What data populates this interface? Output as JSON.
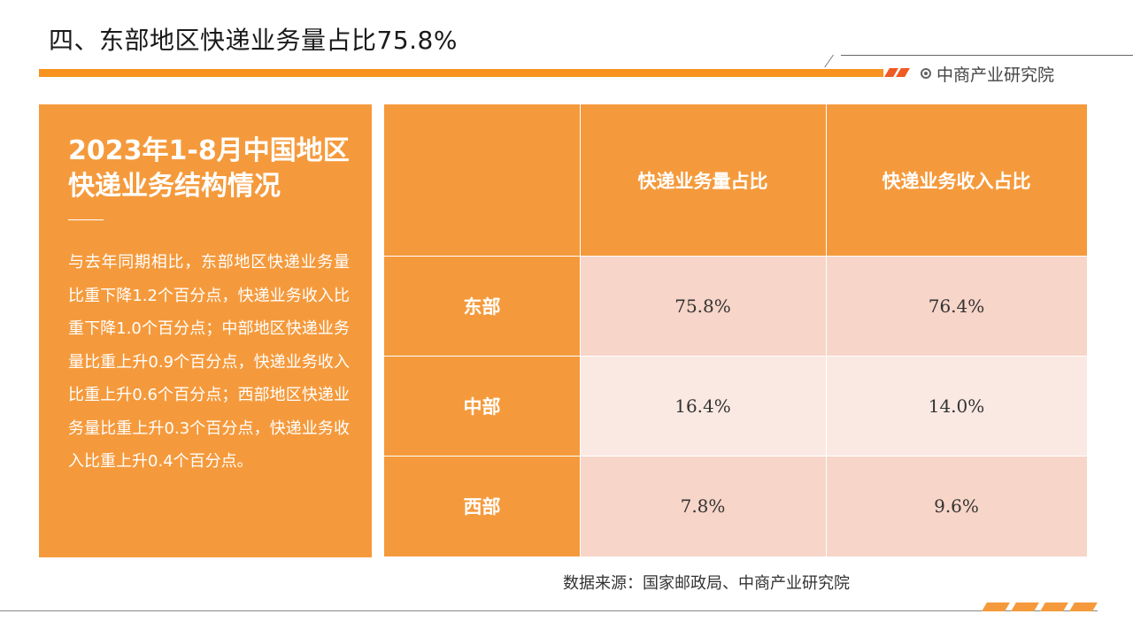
{
  "page": {
    "title": "四、东部地区快递业务量占比75.8%",
    "brand": "中商产业研究院",
    "source": "数据来源：国家邮政局、中商产业研究院"
  },
  "panel": {
    "heading": "2023年1-8月中国地区快递业务结构情况",
    "body": "与去年同期相比，东部地区快递业务量比重下降1.2个百分点，快递业务收入比重下降1.0个百分点；中部地区快递业务量比重上升0.9个百分点，快递业务收入比重上升0.6个百分点；西部地区快递业务量比重上升0.3个百分点，快递业务收入比重上升0.4个百分点。"
  },
  "table": {
    "columns": [
      "",
      "快递业务量占比",
      "快递业务收入占比"
    ],
    "rows": [
      {
        "region": "东部",
        "volume_share": "75.8%",
        "revenue_share": "76.4%"
      },
      {
        "region": "中部",
        "volume_share": "16.4%",
        "revenue_share": "14.0%"
      },
      {
        "region": "西部",
        "volume_share": "7.8%",
        "revenue_share": "9.6%"
      }
    ]
  },
  "colors": {
    "accent": "#f59a3c",
    "accent_dark": "#f05a24",
    "row_odd": "#f7d5c8",
    "row_even": "#fae9e3"
  }
}
